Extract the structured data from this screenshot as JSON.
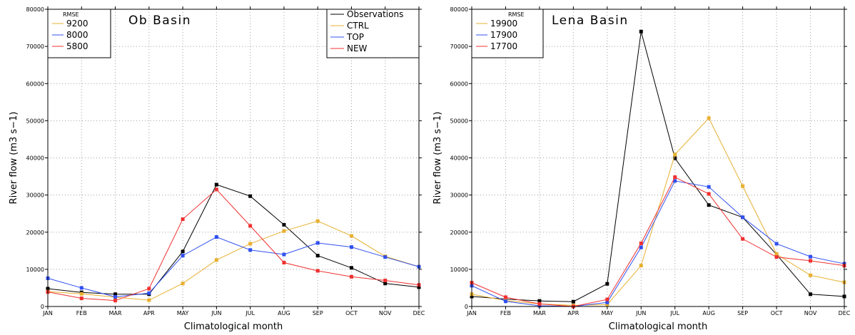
{
  "figure": {
    "x_label": "Climatological month",
    "y_label": "River flow (m3 s−1)"
  },
  "colors": {
    "Observations": "#000000",
    "CTRL": "#e8b030",
    "TOP": "#3050f0",
    "NEW": "#f03030"
  },
  "chart_data": [
    {
      "type": "line",
      "title": "Ob Basin",
      "xlabel": "Climatological month",
      "ylabel": "River flow (m3 s−1)",
      "categories": [
        "JAN",
        "FEB",
        "MAR",
        "APR",
        "MAY",
        "JUN",
        "JUL",
        "AUG",
        "SEP",
        "OCT",
        "NOV",
        "DEC"
      ],
      "ylim": [
        0,
        80000
      ],
      "yticks": [
        0,
        10000,
        20000,
        30000,
        40000,
        50000,
        60000,
        70000,
        80000
      ],
      "grid": true,
      "rmse_title": "RMSE",
      "rmse": [
        {
          "model": "CTRL",
          "value": "9200"
        },
        {
          "model": "TOP",
          "value": "8000"
        },
        {
          "model": "NEW",
          "value": "5800"
        }
      ],
      "legend": [
        "Observations",
        "CTRL",
        "TOP",
        "NEW"
      ],
      "series": [
        {
          "name": "Observations",
          "values": [
            4800,
            3800,
            3300,
            3300,
            14800,
            32800,
            29700,
            22000,
            13700,
            10400,
            6200,
            5200
          ]
        },
        {
          "name": "CTRL",
          "values": [
            4000,
            3400,
            2500,
            1700,
            6200,
            12500,
            16900,
            20300,
            23000,
            19000,
            13500,
            10700
          ]
        },
        {
          "name": "TOP",
          "values": [
            7600,
            5000,
            2600,
            3600,
            13700,
            18700,
            15200,
            14000,
            17100,
            16000,
            13300,
            10700
          ]
        },
        {
          "name": "NEW",
          "values": [
            3900,
            2200,
            1600,
            4800,
            23500,
            31500,
            21700,
            11800,
            9600,
            8000,
            7000,
            5800
          ]
        }
      ]
    },
    {
      "type": "line",
      "title": "Lena Basin",
      "xlabel": "Climatological month",
      "ylabel": "River flow (m3 s−1)",
      "categories": [
        "JAN",
        "FEB",
        "MAR",
        "APR",
        "MAY",
        "JUN",
        "JUL",
        "AUG",
        "SEP",
        "OCT",
        "NOV",
        "DEC"
      ],
      "ylim": [
        0,
        80000
      ],
      "yticks": [
        0,
        10000,
        20000,
        30000,
        40000,
        50000,
        60000,
        70000,
        80000
      ],
      "grid": true,
      "rmse_title": "RMSE",
      "rmse": [
        {
          "model": "CTRL",
          "value": "19900"
        },
        {
          "model": "TOP",
          "value": "17900"
        },
        {
          "model": "NEW",
          "value": "17700"
        }
      ],
      "legend": [],
      "series": [
        {
          "name": "Observations",
          "values": [
            2700,
            2000,
            1500,
            1300,
            6100,
            74000,
            39900,
            27300,
            24000,
            14000,
            3300,
            2700
          ]
        },
        {
          "name": "CTRL",
          "values": [
            3300,
            1600,
            700,
            300,
            500,
            11000,
            40900,
            50700,
            32400,
            14100,
            8400,
            6500
          ]
        },
        {
          "name": "TOP",
          "values": [
            5600,
            1400,
            200,
            0,
            1100,
            15900,
            33800,
            32200,
            24000,
            16900,
            13400,
            11500
          ]
        },
        {
          "name": "NEW",
          "values": [
            6400,
            2500,
            700,
            0,
            1900,
            17000,
            34800,
            30300,
            18200,
            13300,
            12300,
            11000
          ]
        }
      ]
    }
  ]
}
